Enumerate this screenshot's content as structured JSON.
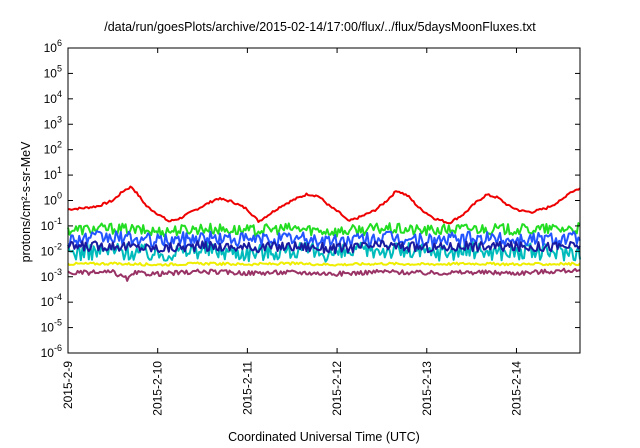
{
  "chart_data": {
    "type": "line",
    "title": "/data/run/goesPlots/archive/2015-02-14/17:00/flux/../flux/5daysMoonFluxes.txt",
    "xlabel": "Coordinated Universal Time (UTC)",
    "ylabel": "protons/cm²-s-sr-MeV",
    "x_axis": {
      "type": "date",
      "range": [
        "2015-02-09",
        "2015-02-14T17:00"
      ],
      "tick_labels": [
        "2015-2-9",
        "2015-2-10",
        "2015-2-11",
        "2015-2-12",
        "2015-2-13",
        "2015-2-14"
      ]
    },
    "y_axis": {
      "scale": "log",
      "range": [
        1e-06,
        1000000.0
      ],
      "tick_labels": [
        {
          "base": "10",
          "exp": "-6"
        },
        {
          "base": "10",
          "exp": "-5"
        },
        {
          "base": "10",
          "exp": "-4"
        },
        {
          "base": "10",
          "exp": "-3"
        },
        {
          "base": "10",
          "exp": "-2"
        },
        {
          "base": "10",
          "exp": "-1"
        },
        {
          "base": "10",
          "exp": "0"
        },
        {
          "base": "10",
          "exp": "1"
        },
        {
          "base": "10",
          "exp": "2"
        },
        {
          "base": "10",
          "exp": "3"
        },
        {
          "base": "10",
          "exp": "4"
        },
        {
          "base": "10",
          "exp": "5"
        },
        {
          "base": "10",
          "exp": "6"
        }
      ]
    },
    "grid": false,
    "legend": "none",
    "series": [
      {
        "color": "#ee0000",
        "points": [
          [
            "2015-02-09T00:00",
            0.45
          ],
          [
            "2015-02-09T04:00",
            0.5
          ],
          [
            "2015-02-09T08:00",
            0.6
          ],
          [
            "2015-02-09T12:00",
            1.0
          ],
          [
            "2015-02-09T15:00",
            2.5
          ],
          [
            "2015-02-09T17:00",
            3.5
          ],
          [
            "2015-02-09T19:00",
            1.5
          ],
          [
            "2015-02-09T21:00",
            0.6
          ],
          [
            "2015-02-10T00:00",
            0.3
          ],
          [
            "2015-02-10T03:00",
            0.15
          ],
          [
            "2015-02-10T06:00",
            0.2
          ],
          [
            "2015-02-10T09:00",
            0.35
          ],
          [
            "2015-02-10T12:00",
            0.6
          ],
          [
            "2015-02-10T16:00",
            1.2
          ],
          [
            "2015-02-10T20:00",
            0.9
          ],
          [
            "2015-02-11T00:00",
            0.45
          ],
          [
            "2015-02-11T03:00",
            0.15
          ],
          [
            "2015-02-11T06:00",
            0.3
          ],
          [
            "2015-02-11T09:00",
            0.6
          ],
          [
            "2015-02-11T12:00",
            1.0
          ],
          [
            "2015-02-11T16:00",
            1.8
          ],
          [
            "2015-02-11T19:00",
            1.5
          ],
          [
            "2015-02-11T22:00",
            0.6
          ],
          [
            "2015-02-12T01:00",
            0.3
          ],
          [
            "2015-02-12T03:00",
            0.15
          ],
          [
            "2015-02-12T06:00",
            0.22
          ],
          [
            "2015-02-12T10:00",
            0.4
          ],
          [
            "2015-02-12T13:00",
            0.9
          ],
          [
            "2015-02-12T16:00",
            2.5
          ],
          [
            "2015-02-12T19:00",
            1.5
          ],
          [
            "2015-02-12T22:00",
            0.5
          ],
          [
            "2015-02-13T02:00",
            0.2
          ],
          [
            "2015-02-13T06:00",
            0.13
          ],
          [
            "2015-02-13T10:00",
            0.3
          ],
          [
            "2015-02-13T13:00",
            0.8
          ],
          [
            "2015-02-13T16:00",
            1.7
          ],
          [
            "2015-02-13T19:00",
            1.3
          ],
          [
            "2015-02-13T22:00",
            0.6
          ],
          [
            "2015-02-14T01:00",
            0.4
          ],
          [
            "2015-02-14T04:00",
            0.35
          ],
          [
            "2015-02-14T08:00",
            0.5
          ],
          [
            "2015-02-14T12:00",
            1.0
          ],
          [
            "2015-02-14T14:00",
            2.0
          ],
          [
            "2015-02-14T17:00",
            3.0
          ]
        ]
      },
      {
        "color": "#22dd22",
        "points": [
          [
            "2015-02-09T00:00",
            0.07
          ],
          [
            "2015-02-09T12:00",
            0.08
          ],
          [
            "2015-02-10T00:00",
            0.06
          ],
          [
            "2015-02-10T12:00",
            0.08
          ],
          [
            "2015-02-11T00:00",
            0.065
          ],
          [
            "2015-02-11T12:00",
            0.08
          ],
          [
            "2015-02-12T00:00",
            0.06
          ],
          [
            "2015-02-12T12:00",
            0.08
          ],
          [
            "2015-02-13T00:00",
            0.065
          ],
          [
            "2015-02-13T12:00",
            0.08
          ],
          [
            "2015-02-14T00:00",
            0.07
          ],
          [
            "2015-02-14T17:00",
            0.08
          ]
        ]
      },
      {
        "color": "#00bbbb",
        "points": [
          [
            "2015-02-09T00:00",
            0.009
          ],
          [
            "2015-02-09T12:00",
            0.011
          ],
          [
            "2015-02-10T00:00",
            0.008
          ],
          [
            "2015-02-10T12:00",
            0.012
          ],
          [
            "2015-02-11T00:00",
            0.009
          ],
          [
            "2015-02-11T12:00",
            0.011
          ],
          [
            "2015-02-12T00:00",
            0.008
          ],
          [
            "2015-02-12T12:00",
            0.012
          ],
          [
            "2015-02-13T00:00",
            0.009
          ],
          [
            "2015-02-13T12:00",
            0.011
          ],
          [
            "2015-02-14T00:00",
            0.009
          ],
          [
            "2015-02-14T17:00",
            0.01
          ]
        ]
      },
      {
        "color": "#2255ff",
        "points": [
          [
            "2015-02-09T00:00",
            0.03
          ],
          [
            "2015-02-09T12:00",
            0.035
          ],
          [
            "2015-02-10T00:00",
            0.025
          ],
          [
            "2015-02-10T12:00",
            0.035
          ],
          [
            "2015-02-11T00:00",
            0.028
          ],
          [
            "2015-02-11T12:00",
            0.032
          ],
          [
            "2015-02-12T00:00",
            0.025
          ],
          [
            "2015-02-12T12:00",
            0.035
          ],
          [
            "2015-02-13T00:00",
            0.027
          ],
          [
            "2015-02-13T12:00",
            0.032
          ],
          [
            "2015-02-14T00:00",
            0.03
          ],
          [
            "2015-02-14T17:00",
            0.035
          ]
        ]
      },
      {
        "color": "#1a1aa0",
        "points": [
          [
            "2015-02-09T00:00",
            0.015
          ],
          [
            "2015-02-09T12:00",
            0.017
          ],
          [
            "2015-02-10T00:00",
            0.013
          ],
          [
            "2015-02-10T12:00",
            0.016
          ],
          [
            "2015-02-11T00:00",
            0.014
          ],
          [
            "2015-02-11T12:00",
            0.016
          ],
          [
            "2015-02-12T00:00",
            0.013
          ],
          [
            "2015-02-12T12:00",
            0.017
          ],
          [
            "2015-02-13T00:00",
            0.014
          ],
          [
            "2015-02-13T12:00",
            0.016
          ],
          [
            "2015-02-14T00:00",
            0.015
          ],
          [
            "2015-02-14T17:00",
            0.016
          ]
        ]
      },
      {
        "color": "#eeee00",
        "points": [
          [
            "2015-02-09T00:00",
            0.0032
          ],
          [
            "2015-02-09T12:00",
            0.0033
          ],
          [
            "2015-02-10T00:00",
            0.003
          ],
          [
            "2015-02-10T12:00",
            0.0033
          ],
          [
            "2015-02-11T00:00",
            0.0031
          ],
          [
            "2015-02-11T12:00",
            0.0033
          ],
          [
            "2015-02-12T00:00",
            0.003
          ],
          [
            "2015-02-12T12:00",
            0.0033
          ],
          [
            "2015-02-13T00:00",
            0.0031
          ],
          [
            "2015-02-13T12:00",
            0.0033
          ],
          [
            "2015-02-14T00:00",
            0.0031
          ],
          [
            "2015-02-14T17:00",
            0.0032
          ]
        ]
      },
      {
        "color": "#993366",
        "points": [
          [
            "2015-02-09T00:00",
            0.0014
          ],
          [
            "2015-02-09T12:00",
            0.0015
          ],
          [
            "2015-02-09T16:00",
            0.0008
          ],
          [
            "2015-02-09T18:00",
            0.0014
          ],
          [
            "2015-02-10T00:00",
            0.0013
          ],
          [
            "2015-02-10T12:00",
            0.0016
          ],
          [
            "2015-02-11T00:00",
            0.0014
          ],
          [
            "2015-02-11T12:00",
            0.0015
          ],
          [
            "2015-02-12T00:00",
            0.0013
          ],
          [
            "2015-02-12T12:00",
            0.0016
          ],
          [
            "2015-02-13T00:00",
            0.0014
          ],
          [
            "2015-02-13T12:00",
            0.0015
          ],
          [
            "2015-02-14T00:00",
            0.0014
          ],
          [
            "2015-02-14T15:00",
            0.0018
          ],
          [
            "2015-02-14T17:00",
            0.0015
          ]
        ]
      }
    ]
  }
}
